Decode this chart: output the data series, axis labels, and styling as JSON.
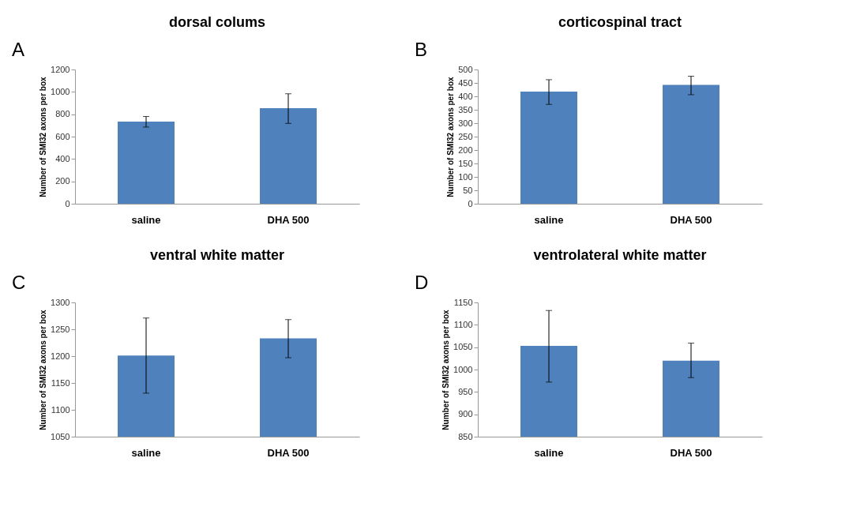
{
  "chart_data": [
    {
      "type": "bar",
      "title": "dorsal colums",
      "ylabel": "Number of SMI32 axons  per box",
      "annotations": [
        "A"
      ],
      "categories": [
        "saline",
        "DHA 500"
      ],
      "values": [
        735,
        855
      ],
      "errors": [
        [
          685,
          780
        ],
        [
          718,
          983
        ]
      ],
      "color": "#4f81bd",
      "ylim": [
        0,
        1200
      ],
      "yticks": [
        0,
        200,
        400,
        600,
        800,
        1000,
        1200
      ]
    },
    {
      "type": "bar",
      "title": "corticospinal tract",
      "ylabel": "Number of SMI32 axons  per box",
      "annotations": [
        "B"
      ],
      "categories": [
        "saline",
        "DHA 500"
      ],
      "values": [
        418,
        443
      ],
      "errors": [
        [
          370,
          462
        ],
        [
          406,
          475
        ]
      ],
      "color": "#4f81bd",
      "ylim": [
        0,
        500
      ],
      "yticks": [
        0,
        50,
        100,
        150,
        200,
        250,
        300,
        350,
        400,
        450,
        500
      ]
    },
    {
      "type": "bar",
      "title": "ventral white matter",
      "ylabel": "Number of SMI32 axons  per box",
      "annotations": [
        "C"
      ],
      "categories": [
        "saline",
        "DHA 500"
      ],
      "values": [
        1201,
        1233
      ],
      "errors": [
        [
          1131,
          1271
        ],
        [
          1197,
          1268
        ]
      ],
      "color": "#4f81bd",
      "ylim": [
        1050,
        1300
      ],
      "yticks": [
        1050,
        1100,
        1150,
        1200,
        1250,
        1300
      ]
    },
    {
      "type": "bar",
      "title": "ventrolateral white matter",
      "ylabel": "Number of SMI32 axons  per box",
      "annotations": [
        "D"
      ],
      "categories": [
        "saline",
        "DHA 500"
      ],
      "values": [
        1053,
        1020
      ],
      "errors": [
        [
          972,
          1132
        ],
        [
          982,
          1059
        ]
      ],
      "color": "#4f81bd",
      "ylim": [
        850,
        1150
      ],
      "yticks": [
        850,
        900,
        950,
        1000,
        1050,
        1100,
        1150
      ]
    }
  ]
}
